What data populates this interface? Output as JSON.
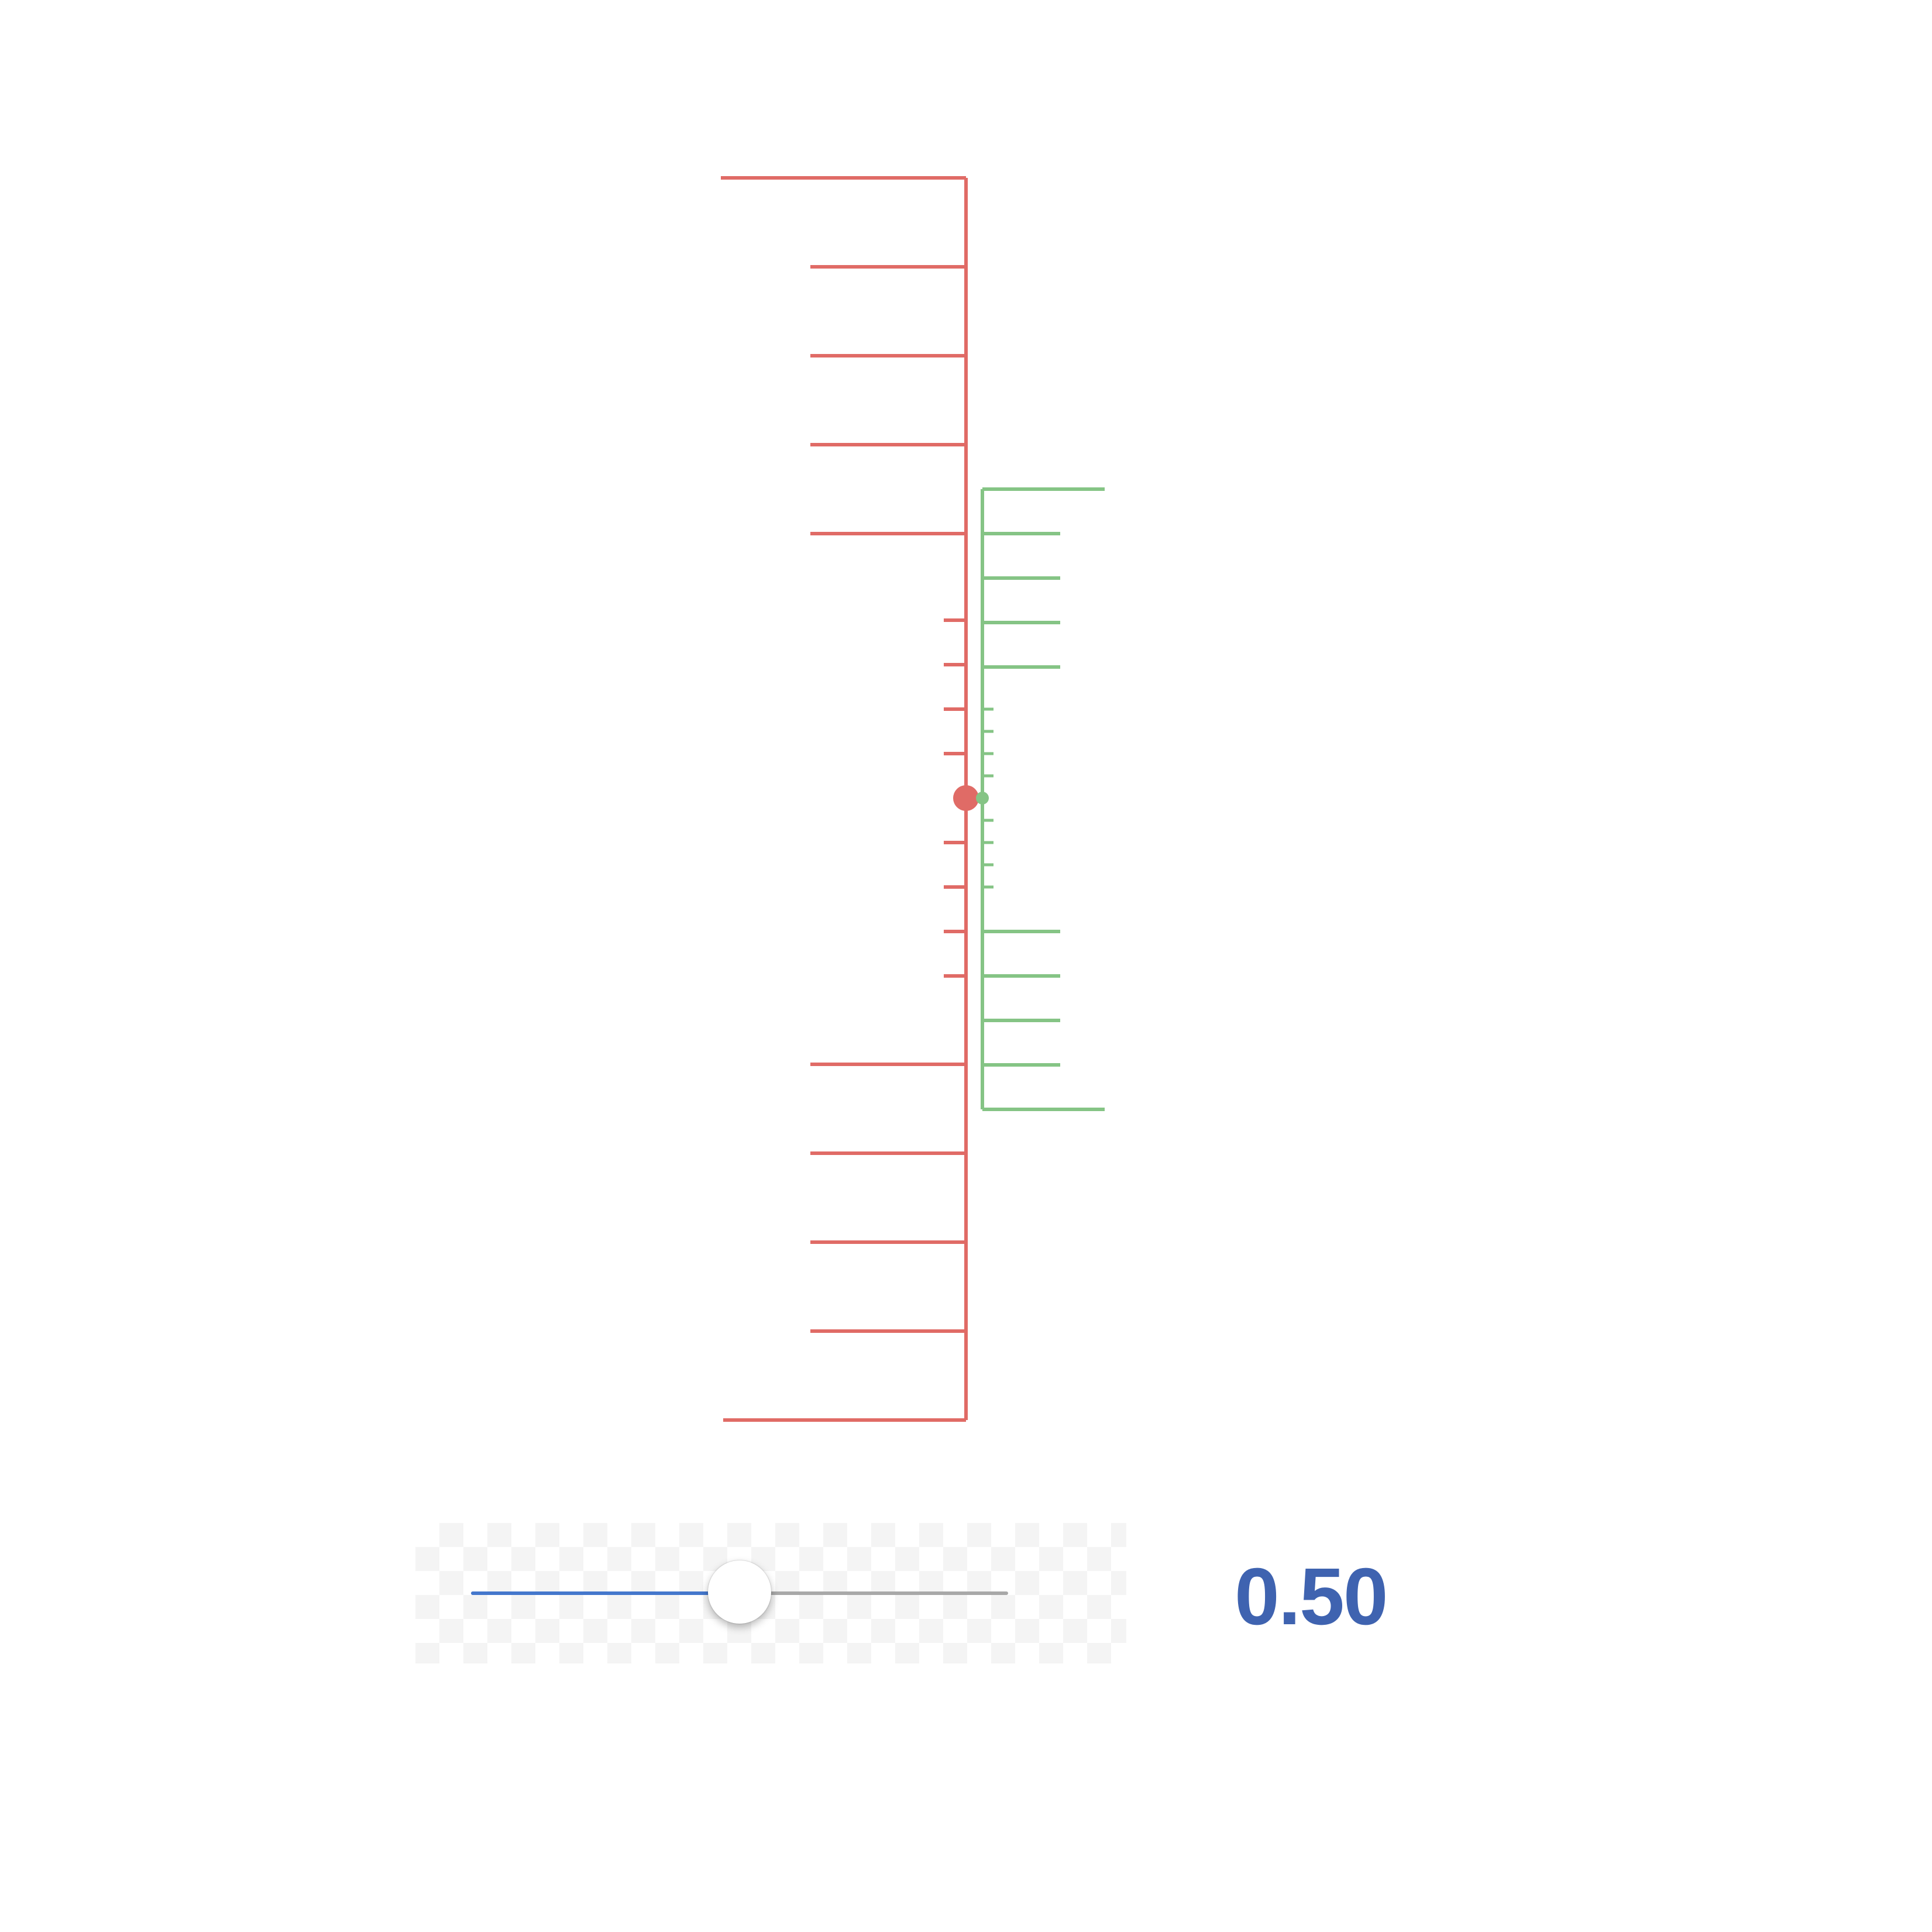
{
  "colors": {
    "red_scale": "#e06b66",
    "green_scale": "#85c485",
    "slider_fill": "#4477cc",
    "slider_track": "#a8a8a8",
    "readout": "#3f63b0"
  },
  "slider": {
    "min": 0,
    "max": 1,
    "value": 0.5,
    "value_label": "0.50"
  },
  "scales": {
    "red": {
      "ticks_per_side": 4,
      "major_ticks_per_side": 4,
      "minor_ticks_per_side": 4
    },
    "green": {
      "major_ticks_per_side": 4,
      "minor_ticks_per_side": 4
    }
  }
}
